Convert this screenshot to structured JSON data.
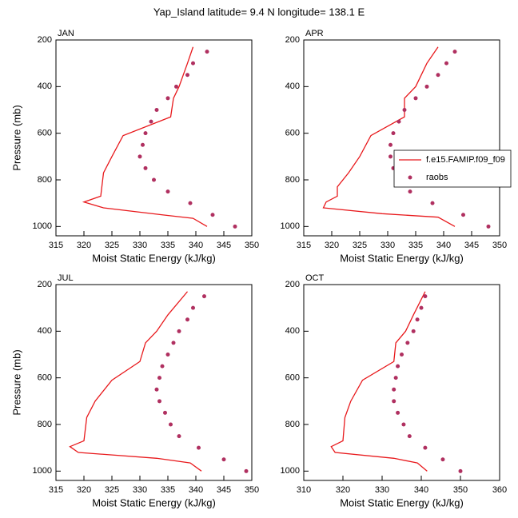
{
  "title": "Yap_Island  latitude= 9.4 N longitude= 138.1 E",
  "chart_data": [
    {
      "type": "line",
      "title": "JAN",
      "xlabel": "Moist Static Energy (kJ/kg)",
      "ylabel": "Pressure (mb)",
      "xlim": [
        315,
        350
      ],
      "xticks": [
        315,
        320,
        325,
        330,
        335,
        340,
        345,
        350
      ],
      "ylim": [
        200,
        1040
      ],
      "y_reversed": true,
      "yticks": [
        200,
        400,
        600,
        800,
        1000
      ],
      "series": [
        {
          "name": "f.e15.FAMIP.f09_f09",
          "color": "#e8191c",
          "mode": "line",
          "x": [
            339.5,
            338.5,
            337,
            336,
            335.5,
            327,
            325,
            323.5,
            323,
            320,
            323.5,
            334,
            339.5,
            342
          ],
          "values": [
            230,
            300,
            400,
            450,
            530,
            610,
            700,
            770,
            870,
            895,
            920,
            950,
            965,
            1000
          ]
        },
        {
          "name": "raobs",
          "color": "#b03060",
          "mode": "markers",
          "x": [
            342,
            339.5,
            338.5,
            336.5,
            335,
            333,
            332,
            331,
            330.5,
            330,
            331,
            332.5,
            335,
            339,
            343,
            347
          ],
          "values": [
            250,
            300,
            350,
            400,
            450,
            500,
            550,
            600,
            650,
            700,
            750,
            800,
            850,
            900,
            950,
            1000
          ]
        }
      ]
    },
    {
      "type": "line",
      "title": "APR",
      "xlabel": "Moist Static Energy (kJ/kg)",
      "legend": "right",
      "xlim": [
        315,
        350
      ],
      "xticks": [
        315,
        320,
        325,
        330,
        335,
        340,
        345,
        350
      ],
      "ylim": [
        200,
        1040
      ],
      "y_reversed": true,
      "yticks": [
        200,
        400,
        600,
        800,
        1000
      ],
      "series": [
        {
          "name": "f.e15.FAMIP.f09_f09",
          "color": "#e8191c",
          "mode": "line",
          "x": [
            339,
            337,
            335,
            333,
            333,
            327,
            325,
            323,
            321,
            321,
            319,
            318.5,
            329,
            339,
            342
          ],
          "values": [
            230,
            300,
            400,
            450,
            530,
            610,
            700,
            770,
            830,
            870,
            895,
            920,
            945,
            960,
            1000
          ]
        },
        {
          "name": "raobs",
          "color": "#b03060",
          "mode": "markers",
          "x": [
            342,
            340.5,
            339,
            337,
            335,
            333,
            332,
            331,
            330.5,
            330.5,
            331,
            332,
            334,
            338,
            343.5,
            348
          ],
          "values": [
            250,
            300,
            350,
            400,
            450,
            500,
            550,
            600,
            650,
            700,
            750,
            800,
            850,
            900,
            950,
            1000
          ]
        }
      ]
    },
    {
      "type": "line",
      "title": "JUL",
      "xlabel": "Moist Static Energy (kJ/kg)",
      "ylabel": "Pressure (mb)",
      "xlim": [
        315,
        350
      ],
      "xticks": [
        315,
        320,
        325,
        330,
        335,
        340,
        345,
        350
      ],
      "ylim": [
        200,
        1040
      ],
      "y_reversed": true,
      "yticks": [
        200,
        400,
        600,
        800,
        1000
      ],
      "series": [
        {
          "name": "f.e15.FAMIP.f09_f09",
          "color": "#e8191c",
          "mode": "line",
          "x": [
            338.5,
            335,
            333,
            331,
            330,
            325,
            322,
            320.5,
            320,
            317.5,
            319,
            333,
            339,
            341
          ],
          "values": [
            230,
            330,
            400,
            450,
            530,
            610,
            700,
            770,
            870,
            895,
            920,
            945,
            965,
            1000
          ]
        },
        {
          "name": "raobs",
          "color": "#b03060",
          "mode": "markers",
          "x": [
            341.5,
            339.5,
            338.5,
            337,
            336,
            335,
            334,
            333.5,
            333,
            333.5,
            334.5,
            335.5,
            337,
            340.5,
            345,
            349
          ],
          "values": [
            250,
            300,
            350,
            400,
            450,
            500,
            550,
            600,
            650,
            700,
            750,
            800,
            850,
            900,
            950,
            1000
          ]
        }
      ]
    },
    {
      "type": "line",
      "title": "OCT",
      "xlabel": "Moist Static Energy (kJ/kg)",
      "xlim": [
        310,
        360
      ],
      "xticks": [
        310,
        320,
        330,
        340,
        350,
        360
      ],
      "ylim": [
        200,
        1040
      ],
      "y_reversed": true,
      "yticks": [
        200,
        400,
        600,
        800,
        1000
      ],
      "series": [
        {
          "name": "f.e15.FAMIP.f09_f09",
          "color": "#e8191c",
          "mode": "line",
          "x": [
            341,
            338,
            336,
            333.5,
            333,
            325,
            322,
            320.5,
            320,
            317,
            318,
            333,
            339,
            341.5
          ],
          "values": [
            230,
            330,
            400,
            450,
            530,
            610,
            700,
            770,
            870,
            895,
            920,
            945,
            965,
            1000
          ]
        },
        {
          "name": "raobs",
          "color": "#b03060",
          "mode": "markers",
          "x": [
            341,
            340,
            339,
            338,
            336.5,
            335,
            334,
            333.5,
            333,
            333,
            334,
            335.5,
            337,
            341,
            345.5,
            350
          ],
          "values": [
            250,
            300,
            350,
            400,
            450,
            500,
            550,
            600,
            650,
            700,
            750,
            800,
            850,
            900,
            950,
            1000
          ]
        }
      ]
    }
  ]
}
